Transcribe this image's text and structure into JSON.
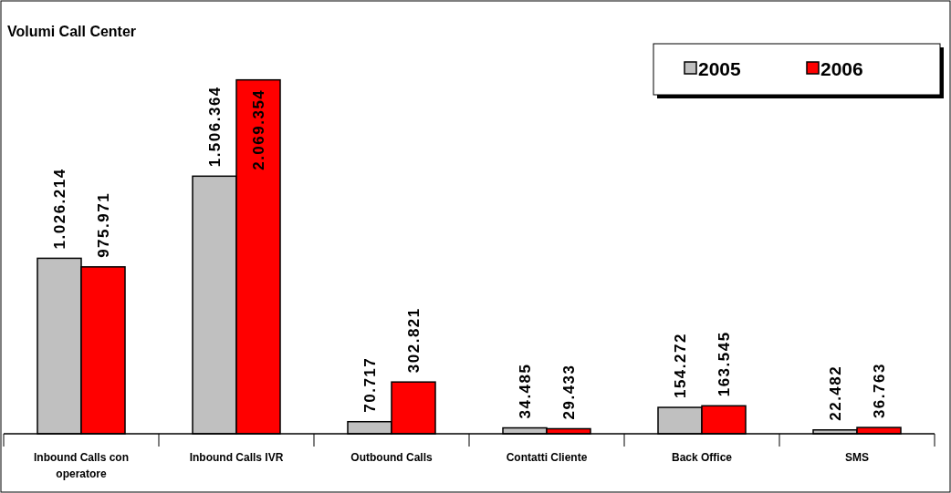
{
  "chart_data": {
    "type": "bar",
    "title": "Volumi Call Center",
    "categories": [
      "Inbound Calls con operatore",
      "Inbound Calls IVR",
      "Outbound Calls",
      "Contatti Cliente",
      "Back Office",
      "SMS"
    ],
    "series": [
      {
        "name": "2005",
        "color": "#c0c0c0",
        "values": [
          1026214,
          1506364,
          70717,
          34485,
          154272,
          22482
        ],
        "value_labels": [
          "1.026.214",
          "1.506.364",
          "70.717",
          "34.485",
          "154.272",
          "22.482"
        ]
      },
      {
        "name": "2006",
        "color": "#ff0000",
        "values": [
          975971,
          2069354,
          302821,
          29433,
          163545,
          36763
        ],
        "value_labels": [
          "975.971",
          "2.069.354",
          "302.821",
          "29.433",
          "163.545",
          "36.763"
        ]
      }
    ],
    "legend": "top right",
    "grid": false
  }
}
